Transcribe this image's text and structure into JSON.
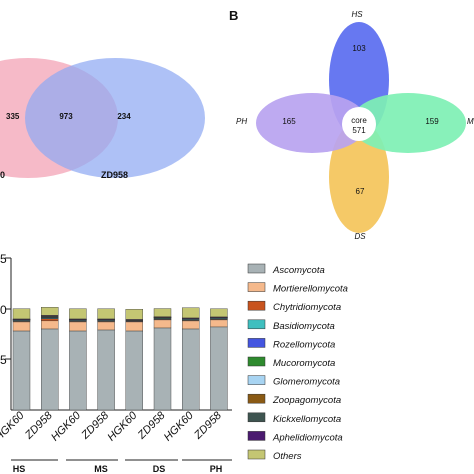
{
  "panel_b_letter": "B",
  "venn_two": {
    "left_count": "335",
    "overlap_count": "973",
    "right_count": "234",
    "left_label_fragment": "0",
    "right_label": "ZD958",
    "left_color": "#f4a6b9",
    "right_color": "#8fa9f2"
  },
  "flower": {
    "core_label": "core",
    "core_count": "571",
    "petals": [
      {
        "key": "top",
        "label": "HS",
        "count": "103",
        "color": "#5a6df0"
      },
      {
        "key": "left",
        "label": "PH",
        "count": "165",
        "color": "#b9a3f0"
      },
      {
        "key": "right",
        "label": "M",
        "count": "159",
        "color": "#7ef0b4"
      },
      {
        "key": "bottom",
        "label": "DS",
        "count": "67",
        "color": "#f4c45a"
      }
    ]
  },
  "chart_data": {
    "type": "bar",
    "stacked": true,
    "categories": [
      "HGK60",
      "ZD958",
      "HGK60",
      "ZD958",
      "HGK60",
      "ZD958",
      "HGK60",
      "ZD958"
    ],
    "groups": [
      "HS",
      "MS",
      "DS",
      "PH"
    ],
    "ylim": [
      0,
      1.5
    ],
    "y_tick_fragments": [
      "5",
      "0",
      "5"
    ],
    "series": [
      {
        "name": "Ascomycota",
        "color": "#a8b2b5",
        "values": [
          0.78,
          0.8,
          0.78,
          0.79,
          0.78,
          0.81,
          0.8,
          0.82
        ]
      },
      {
        "name": "Mortierellomycota",
        "color": "#f5b98c",
        "values": [
          0.09,
          0.08,
          0.09,
          0.08,
          0.09,
          0.08,
          0.08,
          0.07
        ]
      },
      {
        "name": "Chytridiomycota",
        "color": "#c8531e",
        "values": [
          0.005,
          0.02,
          0.005,
          0.005,
          0.005,
          0.005,
          0.005,
          0.005
        ]
      },
      {
        "name": "Basidiomycota",
        "color": "#3fbfbf",
        "values": [
          0.01,
          0.01,
          0.01,
          0.01,
          0.005,
          0.005,
          0.01,
          0.01
        ]
      },
      {
        "name": "Rozellomycota",
        "color": "#4455e0",
        "values": [
          0.003,
          0.003,
          0.003,
          0.003,
          0.003,
          0.003,
          0.003,
          0.003
        ]
      },
      {
        "name": "Mucoromycota",
        "color": "#2e8a2e",
        "values": [
          0.003,
          0.005,
          0.003,
          0.003,
          0.003,
          0.01,
          0.003,
          0.003
        ]
      },
      {
        "name": "Glomeromycota",
        "color": "#a8d4f2",
        "values": [
          0.002,
          0.002,
          0.002,
          0.002,
          0.002,
          0.002,
          0.002,
          0.002
        ]
      },
      {
        "name": "Zoopagomycota",
        "color": "#8a5a14",
        "values": [
          0.002,
          0.002,
          0.002,
          0.002,
          0.002,
          0.002,
          0.002,
          0.002
        ]
      },
      {
        "name": "Kickxellomycota",
        "color": "#3e5450",
        "values": [
          0.002,
          0.01,
          0.002,
          0.002,
          0.002,
          0.002,
          0.002,
          0.002
        ]
      },
      {
        "name": "Aphelidiomycota",
        "color": "#4b1a70",
        "values": [
          0.002,
          0.002,
          0.002,
          0.002,
          0.002,
          0.002,
          0.002,
          0.002
        ]
      },
      {
        "name": "Others",
        "color": "#c4c673",
        "values": [
          0.1,
          0.08,
          0.1,
          0.1,
          0.1,
          0.08,
          0.1,
          0.08
        ]
      }
    ]
  }
}
